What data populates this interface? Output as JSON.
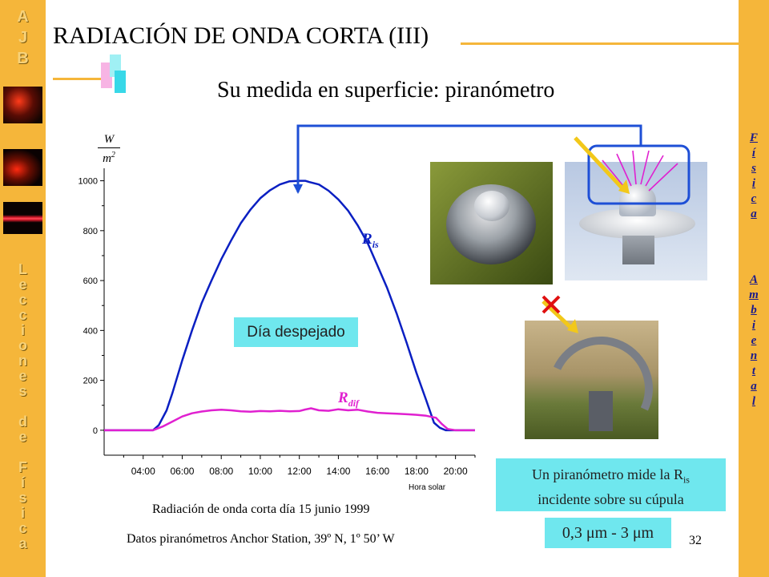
{
  "slide": {
    "title": "RADIACIÓN DE ONDA CORTA (III)",
    "subtitle": "Su medida en superficie: piranómetro",
    "page_number": "32",
    "left_logo": "A J B",
    "left_vertical": "Lecciones de Física",
    "right_vertical_1": "Física",
    "right_vertical_2": "Ambiental"
  },
  "callouts": {
    "clear_day": "Día despejado",
    "description_line1": "Un piranómetro mide la R",
    "description_sub": "is",
    "description_line2": "incidente sobre su cúpula",
    "range": "0,3 μm - 3 μm"
  },
  "captions": {
    "chart_caption": "Radiación de onda corta día 15 junio 1999",
    "source": "Datos piranómetros Anchor Station, 39º N, 1º 50’ W"
  },
  "colors": {
    "side_bars": "#f5b63a",
    "global_series": "#0a1fc2",
    "diffuse_series": "#e020d0",
    "callout_bg": "#6fe7ee",
    "connector": "#1e4fd6",
    "cross": "#e01010"
  },
  "chart_data": {
    "type": "line",
    "ylabel_num": "W",
    "ylabel_den": "m2",
    "xlabel": "Hora solar",
    "ylim": [
      -100,
      1050
    ],
    "xlim": [
      2.0,
      21.0
    ],
    "yticks": [
      0,
      200,
      400,
      600,
      800,
      1000
    ],
    "xticks": [
      "04:00",
      "06:00",
      "08:00",
      "10:00",
      "12:00",
      "14:00",
      "16:00",
      "18:00",
      "20:00"
    ],
    "xtick_values": [
      4,
      6,
      8,
      10,
      12,
      14,
      16,
      18,
      20
    ],
    "series": [
      {
        "name": "R is",
        "label_main": "R",
        "label_sub": "is",
        "x": [
          2.0,
          4.5,
          4.8,
          5.2,
          5.5,
          6.0,
          6.5,
          7.0,
          7.5,
          8.0,
          8.5,
          9.0,
          9.5,
          10.0,
          10.5,
          11.0,
          11.5,
          12.0,
          12.3,
          12.5,
          13.0,
          13.5,
          14.0,
          14.5,
          15.0,
          15.5,
          16.0,
          16.5,
          17.0,
          17.5,
          18.0,
          18.5,
          18.9,
          19.2,
          19.5,
          20.0,
          21.0
        ],
        "y": [
          0,
          0,
          20,
          80,
          150,
          280,
          400,
          510,
          600,
          685,
          760,
          830,
          885,
          930,
          962,
          985,
          998,
          1000,
          1000,
          995,
          985,
          960,
          925,
          880,
          820,
          750,
          660,
          570,
          465,
          350,
          230,
          120,
          30,
          10,
          0,
          0,
          0
        ]
      },
      {
        "name": "R dif",
        "label_main": "R",
        "label_sub": "dif",
        "x": [
          2.0,
          4.5,
          5.0,
          5.5,
          6.0,
          6.5,
          7.0,
          7.5,
          8.0,
          8.5,
          9.0,
          9.5,
          10.0,
          10.5,
          11.0,
          11.5,
          12.0,
          12.3,
          12.6,
          13.0,
          13.5,
          14.0,
          14.5,
          15.0,
          15.5,
          16.0,
          16.5,
          17.0,
          17.5,
          18.0,
          18.5,
          19.0,
          19.3,
          19.6,
          20.0,
          21.0
        ],
        "y": [
          0,
          0,
          15,
          35,
          55,
          68,
          75,
          80,
          82,
          80,
          76,
          74,
          77,
          76,
          78,
          76,
          77,
          83,
          88,
          80,
          78,
          84,
          80,
          82,
          75,
          70,
          68,
          66,
          64,
          62,
          58,
          50,
          25,
          5,
          0,
          0
        ]
      }
    ]
  }
}
